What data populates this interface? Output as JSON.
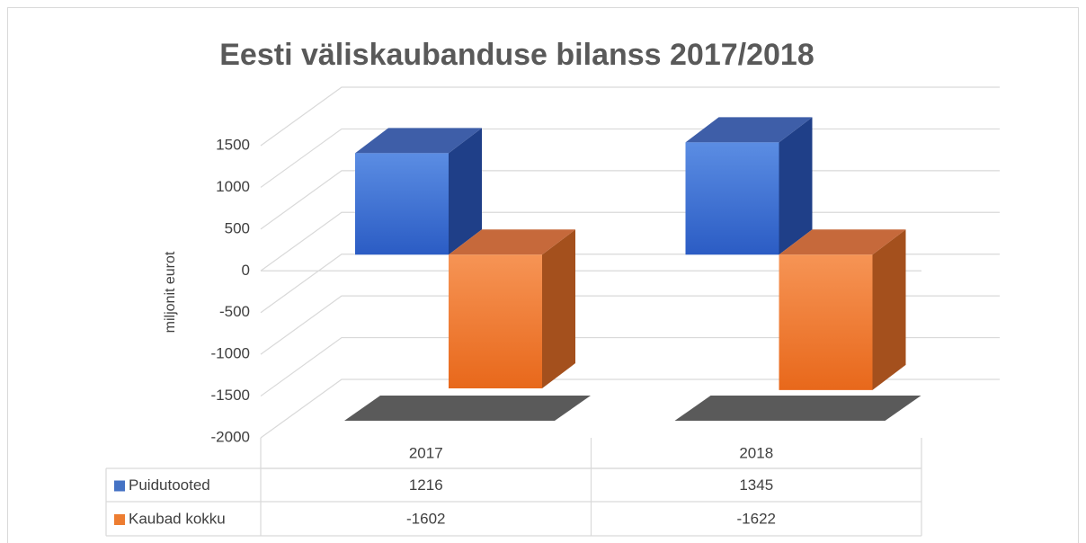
{
  "chart_data": {
    "type": "bar3d",
    "title": "Eesti väliskaubanduse bilanss 2017/2018",
    "y_label": "miljonit eurot",
    "categories": [
      "2017",
      "2018"
    ],
    "series": [
      {
        "name": "Puidutooted",
        "color": "#4472c4",
        "values": [
          1216,
          1345
        ]
      },
      {
        "name": "Kaubad kokku",
        "color": "#ed7d31",
        "values": [
          -1602,
          -1622
        ]
      }
    ],
    "ylim": [
      -2000,
      1500
    ],
    "yticks": [
      -2000,
      -1500,
      -1000,
      -500,
      0,
      500,
      1000,
      1500
    ],
    "grid": true,
    "data_table": true
  }
}
